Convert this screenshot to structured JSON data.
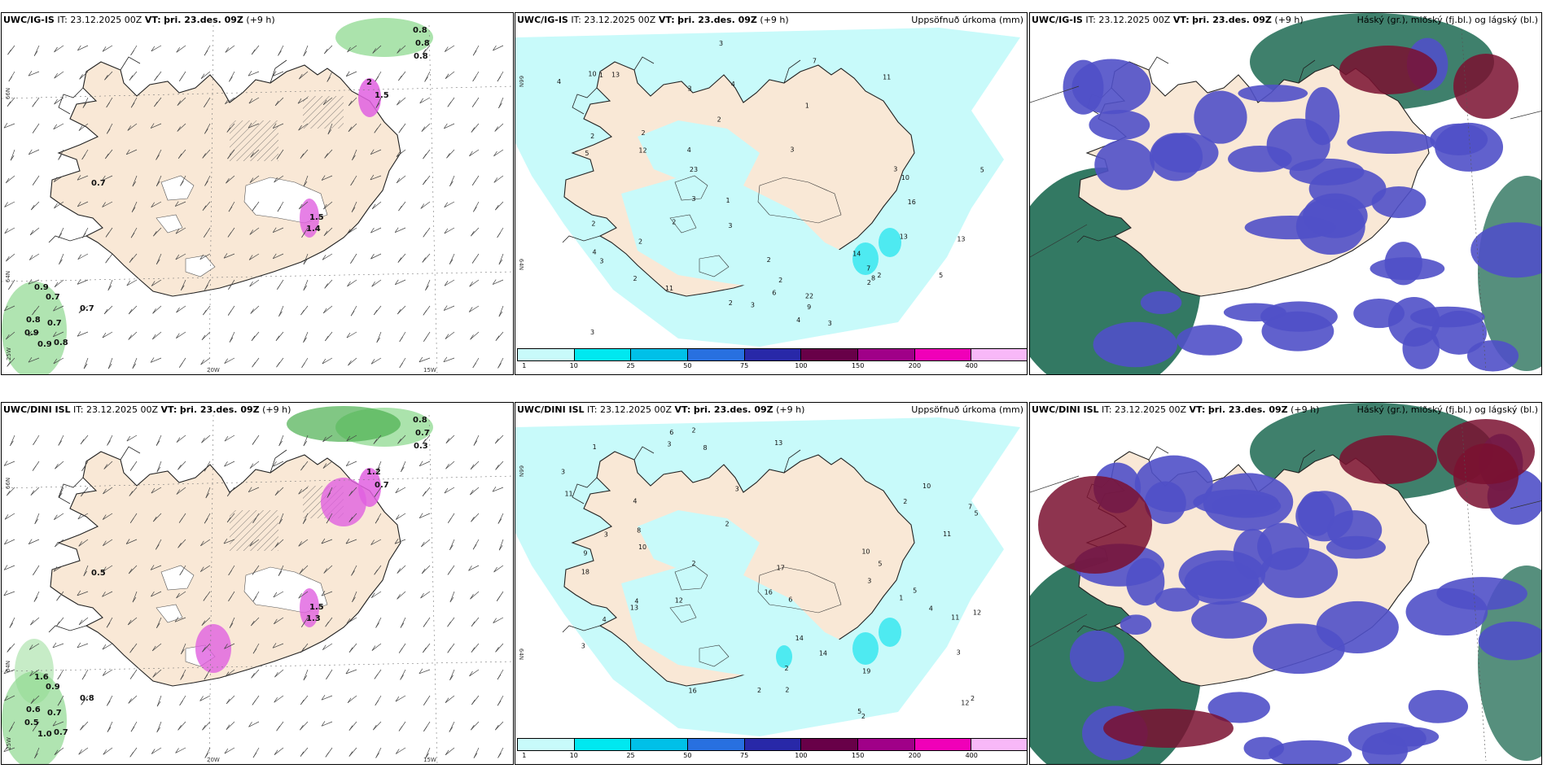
{
  "rows": [
    {
      "model": "UWC/IG-IS",
      "it_label": "IT:",
      "it_value": "23.12.2025 00Z",
      "vt_label": "VT:",
      "vt_value": "þri. 23.des. 09Z",
      "lead": "(+9 h)",
      "lat_labels": [
        "66N",
        "64N"
      ],
      "lon_labels": [
        "20W",
        "15W"
      ],
      "lon_edge": "25W",
      "vis_values": [
        "0.8",
        "0.8",
        "0.8",
        "2",
        "1.5",
        "0.7",
        "1.5",
        "1.4",
        "0.9",
        "0.7",
        "0.8",
        "0.7",
        "0.9",
        "0.9",
        "0.8",
        "0.7"
      ],
      "precip_values": [
        "2",
        "2",
        "3",
        "4",
        "5",
        "3",
        "6",
        "2",
        "3",
        "2",
        "2",
        "5",
        "3",
        "3",
        "11",
        "9",
        "7",
        "8",
        "13",
        "10",
        "13",
        "16",
        "12",
        "23",
        "22",
        "11",
        "7",
        "4",
        "3",
        "4",
        "10",
        "14",
        "13",
        "2",
        "2",
        "2",
        "1",
        "2",
        "1",
        "2",
        "3",
        "2",
        "3",
        "4",
        "5",
        "1",
        "2",
        "3",
        "3",
        "4"
      ]
    },
    {
      "model": "UWC/DINI ISL",
      "it_label": "IT:",
      "it_value": "23.12.2025 00Z",
      "vt_label": "VT:",
      "vt_value": "þri. 23.des. 09Z",
      "lead": "(+9 h)",
      "lat_labels": [
        "66N",
        "64N"
      ],
      "lon_labels": [
        "20W",
        "15W"
      ],
      "lon_edge": "25W",
      "vis_values": [
        "0.8",
        "0.7",
        "0.3",
        "1.2",
        "0.7",
        "0.5",
        "1.5",
        "1.3",
        "1.6",
        "0.9",
        "0.6",
        "0.7",
        "0.5",
        "1.0",
        "0.7",
        "0.8"
      ],
      "precip_values": [
        "3",
        "4",
        "10",
        "11",
        "3",
        "5",
        "5",
        "4",
        "6",
        "2",
        "13",
        "10",
        "5",
        "2",
        "2",
        "3",
        "4",
        "8",
        "12",
        "9",
        "16",
        "17",
        "11",
        "12",
        "8",
        "12",
        "18",
        "16",
        "14",
        "13",
        "10",
        "11",
        "7",
        "4",
        "3",
        "19",
        "14",
        "2",
        "1",
        "2",
        "3",
        "2",
        "1",
        "2",
        "3",
        "5",
        "6",
        "2",
        "2",
        "3"
      ]
    }
  ],
  "precip_title": "Uppsöfnuð úrkoma (mm)",
  "cloud_title": "Háský (gr.), miðský (fj.bl.) og lágský (bl.)",
  "colorbar": {
    "colors": [
      "#c8fafa",
      "#00e8f0",
      "#00c0e8",
      "#2870e0",
      "#2828a8",
      "#680048",
      "#a00088",
      "#f000b8",
      "#f8b8f8"
    ],
    "labels": [
      "1",
      "10",
      "25",
      "50",
      "75",
      "100",
      "150",
      "200",
      "400"
    ]
  },
  "colors": {
    "land": "#f9e8d6",
    "coast": "#222222",
    "precip_light": "#c8fafa",
    "precip_mid": "#40e8f0",
    "vis_green": "#8fd990",
    "vis_magenta": "#e060e0",
    "cloud_high": "#1d6a52",
    "cloud_mid": "#5050c8",
    "cloud_low": "#7a1030"
  }
}
